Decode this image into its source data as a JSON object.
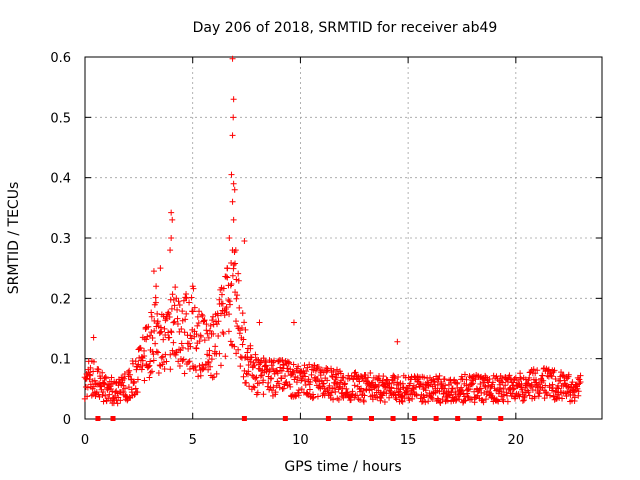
{
  "chart_data": {
    "type": "scatter",
    "title": "Day 206 of 2018, SRMTID for receiver ab49",
    "xlabel": "GPS time / hours",
    "ylabel": "SRMTID / TECUs",
    "xlim": [
      0,
      24
    ],
    "ylim": [
      0,
      0.6
    ],
    "grid": true,
    "marker": "+",
    "series_color": "#ff0000",
    "xticks": [
      0,
      5,
      10,
      15,
      20
    ],
    "xtick_labels": [
      "0",
      "5",
      "10",
      "15",
      "20"
    ],
    "yticks": [
      0,
      0.1,
      0.2,
      0.3,
      0.4,
      0.5,
      0.6
    ],
    "ytick_labels": [
      "0",
      "0.1",
      "0.2",
      "0.3",
      "0.4",
      "0.5",
      "0.6"
    ],
    "profile": {
      "x": [
        0,
        0.3,
        0.6,
        1.0,
        1.5,
        2.0,
        2.5,
        3.0,
        3.2,
        3.5,
        4.0,
        4.3,
        4.6,
        5.0,
        5.5,
        6.0,
        6.5,
        6.9,
        7.2,
        7.5,
        8.0,
        9.0,
        10.0,
        11.0,
        12.0,
        14.0,
        16.0,
        18.0,
        20.0,
        21.0,
        22.0,
        23.0
      ],
      "y": [
        0.06,
        0.07,
        0.06,
        0.05,
        0.045,
        0.055,
        0.08,
        0.12,
        0.16,
        0.13,
        0.14,
        0.16,
        0.14,
        0.15,
        0.12,
        0.12,
        0.17,
        0.2,
        0.16,
        0.09,
        0.07,
        0.07,
        0.065,
        0.06,
        0.055,
        0.05,
        0.05,
        0.05,
        0.05,
        0.06,
        0.055,
        0.05
      ]
    },
    "peaks": [
      {
        "x": 6.85,
        "y": 0.597
      },
      {
        "x": 6.9,
        "y": 0.53
      },
      {
        "x": 6.88,
        "y": 0.5
      },
      {
        "x": 6.85,
        "y": 0.47
      },
      {
        "x": 6.8,
        "y": 0.405
      },
      {
        "x": 6.9,
        "y": 0.39
      },
      {
        "x": 6.95,
        "y": 0.38
      },
      {
        "x": 6.85,
        "y": 0.36
      },
      {
        "x": 6.9,
        "y": 0.33
      },
      {
        "x": 6.7,
        "y": 0.3
      },
      {
        "x": 7.4,
        "y": 0.295
      },
      {
        "x": 7.0,
        "y": 0.28
      },
      {
        "x": 4.0,
        "y": 0.342
      },
      {
        "x": 4.05,
        "y": 0.33
      },
      {
        "x": 4.0,
        "y": 0.3
      },
      {
        "x": 3.95,
        "y": 0.28
      },
      {
        "x": 3.5,
        "y": 0.25
      },
      {
        "x": 3.2,
        "y": 0.245
      },
      {
        "x": 3.3,
        "y": 0.22
      },
      {
        "x": 5.0,
        "y": 0.22
      },
      {
        "x": 6.6,
        "y": 0.25
      },
      {
        "x": 14.5,
        "y": 0.128
      },
      {
        "x": 0.4,
        "y": 0.135
      },
      {
        "x": 9.7,
        "y": 0.16
      },
      {
        "x": 8.1,
        "y": 0.16
      }
    ],
    "gap_markers_x": [
      0.6,
      1.3,
      7.4,
      9.3,
      11.3,
      12.3,
      13.3,
      14.3,
      15.3,
      16.3,
      17.3,
      18.3,
      19.3
    ]
  }
}
